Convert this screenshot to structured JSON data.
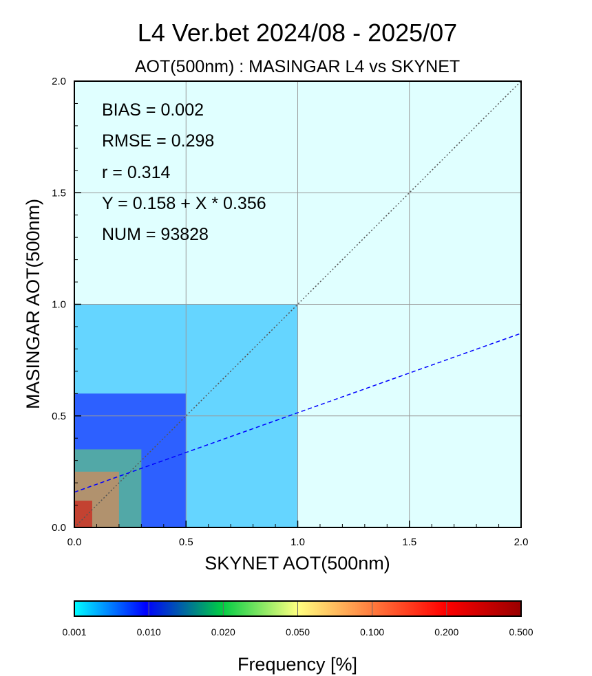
{
  "chart_data": {
    "type": "heatmap",
    "title": "L4  Ver.bet  2024/08 - 2025/07",
    "subtitle": "AOT(500nm) : MASINGAR L4 vs SKYNET",
    "xlabel": "SKYNET AOT(500nm)",
    "ylabel": "MASINGAR AOT(500nm)",
    "xlim": [
      0.0,
      2.0
    ],
    "ylim": [
      0.0,
      2.0
    ],
    "xticks": [
      "0.0",
      "0.5",
      "1.0",
      "1.5",
      "2.0"
    ],
    "yticks": [
      "0.0",
      "0.5",
      "1.0",
      "1.5",
      "2.0"
    ],
    "grid": true,
    "statistics": [
      {
        "label": "BIAS",
        "text": "BIAS = 0.002"
      },
      {
        "label": "RMSE",
        "text": "RMSE = 0.298"
      },
      {
        "label": "r",
        "text": "r = 0.314"
      },
      {
        "label": "regression",
        "text": "Y = 0.158 + X * 0.356"
      },
      {
        "label": "NUM",
        "text": "NUM = 93828"
      }
    ],
    "regression": {
      "intercept": 0.158,
      "slope": 0.356,
      "color": "#0000ff"
    },
    "one_to_one_line": {
      "color": "#555555"
    },
    "density_regions": [
      {
        "x": [
          0.0,
          0.08
        ],
        "y": [
          0.0,
          0.12
        ],
        "frequency": 0.3
      },
      {
        "x": [
          0.0,
          0.2
        ],
        "y": [
          0.0,
          0.25
        ],
        "frequency": 0.1
      },
      {
        "x": [
          0.0,
          0.3
        ],
        "y": [
          0.0,
          0.35
        ],
        "frequency": 0.03
      },
      {
        "x": [
          0.0,
          0.5
        ],
        "y": [
          0.0,
          0.6
        ],
        "frequency": 0.01
      },
      {
        "x": [
          0.0,
          1.0
        ],
        "y": [
          0.0,
          1.0
        ],
        "frequency": 0.002
      },
      {
        "x": [
          0.0,
          2.0
        ],
        "y": [
          0.0,
          2.0
        ],
        "frequency": 0.001
      }
    ],
    "colorbar": {
      "title": "Frequency [%]",
      "ticks": [
        "0.001",
        "0.010",
        "0.020",
        "0.050",
        "0.100",
        "0.200",
        "0.500"
      ],
      "colors": [
        "#00ffff",
        "#0000ff",
        "#00cc44",
        "#ffff80",
        "#ff8040",
        "#ff0000",
        "#990000"
      ]
    }
  }
}
